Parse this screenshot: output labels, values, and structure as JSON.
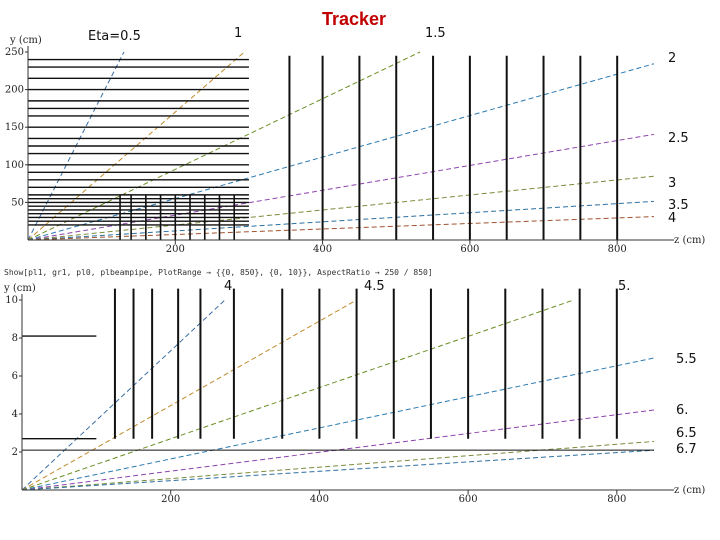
{
  "title": "Tracker",
  "command_text": "Show[pl1, gr1, pl0, plbeampipe, PlotRange → {{0, 850}, {0, 10}}, AspectRatio → 250 / 850]",
  "eta_labels_top": [
    "Eta=0.5",
    "1",
    "1.5",
    "2",
    "2.5",
    "3",
    "3.5",
    "4"
  ],
  "eta_labels_bottom": [
    "4",
    "4.5",
    "5.",
    "5.5",
    "6.",
    "6.5",
    "6.7"
  ],
  "chart_data": [
    {
      "type": "line",
      "panel": "top",
      "xlabel": "z (cm)",
      "ylabel": "y (cm)",
      "xlim": [
        0,
        850
      ],
      "ylim": [
        0,
        250
      ],
      "x_ticks": [
        200,
        400,
        600,
        800
      ],
      "y_ticks": [
        50,
        100,
        150,
        200,
        250
      ],
      "eta_lines": [
        0.5,
        1,
        1.5,
        2,
        2.5,
        3,
        3.5,
        4
      ],
      "barrel_layers_y": [
        20,
        25,
        30,
        35,
        40,
        45,
        50,
        55,
        60,
        70,
        80,
        90,
        100,
        115,
        125,
        135,
        150,
        165,
        175,
        185,
        200,
        215,
        230,
        240
      ],
      "barrel_z_max": 300,
      "endcap_disks_large_z": [
        355,
        400,
        450,
        500,
        550,
        600,
        650,
        700,
        750,
        800
      ],
      "endcap_disks_large_ymax": 245,
      "endcap_disks_small_z": [
        125,
        140,
        160,
        180,
        200,
        220,
        240,
        260,
        280
      ],
      "endcap_disks_small_ymax": 60
    },
    {
      "type": "line",
      "panel": "bottom",
      "xlabel": "z (cm)",
      "ylabel": "y (cm)",
      "xlim": [
        0,
        850
      ],
      "ylim": [
        0,
        10
      ],
      "x_ticks": [
        200,
        400,
        600,
        800
      ],
      "y_ticks": [
        2,
        4,
        6,
        8,
        10
      ],
      "eta_lines": [
        4,
        4.5,
        5,
        5.5,
        6,
        6.5,
        6.7
      ],
      "beampipe_y": 2.1,
      "barrel_layers_y": [
        2.7,
        8.1
      ],
      "endcap_disks_z": [
        125,
        150,
        175,
        210,
        240,
        285,
        350,
        400,
        450,
        500,
        550,
        600,
        650,
        700,
        750,
        800
      ],
      "endcap_disks_ymin": 2.7,
      "endcap_disks_ymax": 10.6
    }
  ]
}
